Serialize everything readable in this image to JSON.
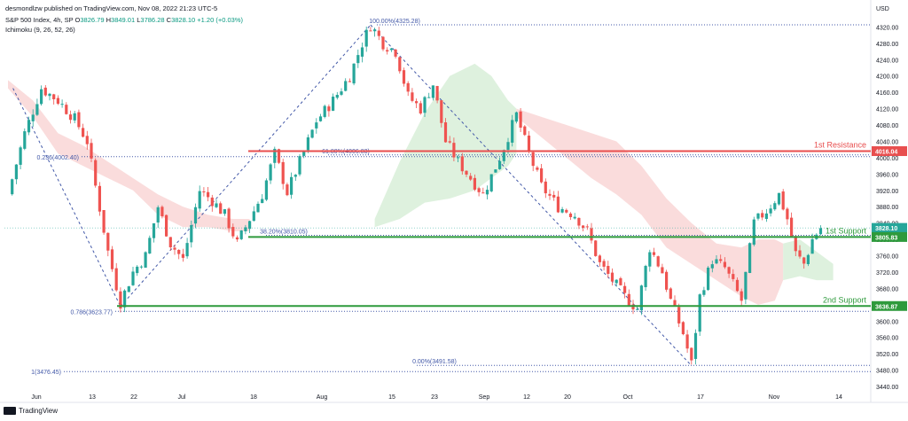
{
  "header": {
    "author_line": "desmondlzw published on TradingView.com, Nov 08, 2022 21:23 UTC-5",
    "symbol": "S&P 500 Index, 4h, SP",
    "ohlc_o_label": "O",
    "ohlc_o": "3826.79",
    "ohlc_h_label": "H",
    "ohlc_h": "3849.01",
    "ohlc_l_label": "L",
    "ohlc_l": "3786.28",
    "ohlc_c_label": "C",
    "ohlc_c": "3828.10",
    "change": "+1.20 (+0.03%)",
    "indicator": "Ichimoku (9, 26, 52, 26)"
  },
  "footer": {
    "brand": "TradingView"
  },
  "colors": {
    "bull": "#26a69a",
    "bear": "#ef5350",
    "resistance": "#e84e4e",
    "support": "#2e9a3c",
    "fib": "#4359a8",
    "cloud_bear": "#f9d6d6",
    "cloud_bull": "#d8eed8"
  },
  "chart_data": {
    "type": "candlestick",
    "currency": "USD",
    "ylim": [
      3440,
      4360
    ],
    "y_ticks": [
      "4320.00",
      "4280.00",
      "4240.00",
      "4200.00",
      "4160.00",
      "4120.00",
      "4080.00",
      "4040.00",
      "4000.00",
      "3960.00",
      "3920.00",
      "3880.00",
      "3840.00",
      "3800.00",
      "3760.00",
      "3720.00",
      "3680.00",
      "3640.00",
      "3600.00",
      "3560.00",
      "3520.00",
      "3480.00",
      "3440.00"
    ],
    "x_ticks": [
      "Jun",
      "13",
      "22",
      "Jul",
      "18",
      "Aug",
      "15",
      "23",
      "Sep",
      "12",
      "20",
      "Oct",
      "17",
      "Nov",
      "14"
    ],
    "levels": [
      {
        "name": "1st Resistance",
        "value": 4016.04,
        "label": "4016.04",
        "color": "#e84e4e"
      },
      {
        "name": "1st Support",
        "value": 3805.83,
        "label": "3805.83",
        "color": "#2e9a3c"
      },
      {
        "name": "2nd Support",
        "value": 3636.87,
        "label": "3636.87",
        "color": "#2e9a3c"
      }
    ],
    "current_price": {
      "value": 3828.1,
      "label": "3828.10"
    },
    "fib_left": [
      {
        "value": 4002.4,
        "label": "0.236(4002.40)"
      },
      {
        "value": 3623.77,
        "label": "0.786(3623.77)"
      },
      {
        "value": 3476.45,
        "label": "1(3476.45)"
      }
    ],
    "fib_right": [
      {
        "value": 4325.28,
        "label": "100.00%(4325.28)"
      },
      {
        "value": 4006.83,
        "label": "61.80%(4006.83)"
      },
      {
        "value": 3810.05,
        "label": "38.20%(3810.05)"
      },
      {
        "value": 3491.58,
        "label": "0.00%(3491.58)"
      }
    ],
    "swings": [
      {
        "t": 0.6,
        "v": 4170
      },
      {
        "t": 13.5,
        "v": 3636
      },
      {
        "t": 43.5,
        "v": 4325
      },
      {
        "t": 82.0,
        "v": 3491
      }
    ],
    "path": [
      [
        0,
        3910
      ],
      [
        2,
        4060
      ],
      [
        4,
        4170
      ],
      [
        6,
        4140
      ],
      [
        8,
        4095
      ],
      [
        9.5,
        4040
      ],
      [
        10.5,
        3930
      ],
      [
        12,
        3770
      ],
      [
        13.5,
        3645
      ],
      [
        15,
        3720
      ],
      [
        16.5,
        3760
      ],
      [
        18,
        3880
      ],
      [
        19.5,
        3790
      ],
      [
        21,
        3750
      ],
      [
        23,
        3920
      ],
      [
        24.5,
        3895
      ],
      [
        26,
        3860
      ],
      [
        27.5,
        3790
      ],
      [
        29,
        3850
      ],
      [
        30.5,
        3910
      ],
      [
        32,
        4010
      ],
      [
        33.5,
        3915
      ],
      [
        35,
        3990
      ],
      [
        37,
        4090
      ],
      [
        39,
        4140
      ],
      [
        41,
        4200
      ],
      [
        42.5,
        4280
      ],
      [
        43.5,
        4325
      ],
      [
        45,
        4280
      ],
      [
        46.5,
        4260
      ],
      [
        48,
        4150
      ],
      [
        49.5,
        4120
      ],
      [
        51,
        4180
      ],
      [
        52.5,
        4040
      ],
      [
        54,
        3990
      ],
      [
        55.5,
        3950
      ],
      [
        57,
        3910
      ],
      [
        59,
        4000
      ],
      [
        61,
        4105
      ],
      [
        62.5,
        4010
      ],
      [
        64,
        3930
      ],
      [
        66,
        3880
      ],
      [
        68,
        3860
      ],
      [
        69.5,
        3820
      ],
      [
        71,
        3740
      ],
      [
        72.5,
        3700
      ],
      [
        74,
        3660
      ],
      [
        75.5,
        3630
      ],
      [
        77,
        3780
      ],
      [
        78.5,
        3720
      ],
      [
        79.5,
        3650
      ],
      [
        81,
        3570
      ],
      [
        82,
        3495
      ],
      [
        83,
        3660
      ],
      [
        84.5,
        3750
      ],
      [
        86,
        3730
      ],
      [
        88,
        3650
      ],
      [
        89.5,
        3840
      ],
      [
        91,
        3870
      ],
      [
        92.5,
        3910
      ],
      [
        93.5,
        3850
      ],
      [
        94.5,
        3765
      ],
      [
        95.5,
        3740
      ],
      [
        96.5,
        3800
      ],
      [
        97.5,
        3828
      ]
    ],
    "ichimoku_cloud_bearish": [
      [
        0,
        4190,
        4170
      ],
      [
        3,
        4140,
        4100
      ],
      [
        6,
        4060,
        4010
      ],
      [
        9,
        4030,
        3980
      ],
      [
        12,
        3990,
        3950
      ],
      [
        15,
        3950,
        3920
      ],
      [
        18,
        3910,
        3860
      ],
      [
        21,
        3880,
        3830
      ],
      [
        24,
        3860,
        3830
      ],
      [
        27,
        3850,
        3820
      ],
      [
        29,
        3850,
        3820
      ]
    ],
    "ichimoku_cloud_bullish": [
      [
        44,
        3850,
        3830
      ],
      [
        47,
        3990,
        3850
      ],
      [
        50,
        4110,
        3890
      ],
      [
        53,
        4200,
        3900
      ],
      [
        56,
        4230,
        3920
      ],
      [
        58,
        4200,
        3950
      ],
      [
        60,
        4140,
        3980
      ],
      [
        61,
        4120,
        4010
      ]
    ],
    "ichimoku_cloud_bearish_2": [
      [
        61,
        4120,
        4100
      ],
      [
        64,
        4100,
        4050
      ],
      [
        67,
        4080,
        4000
      ],
      [
        70,
        4060,
        3950
      ],
      [
        73,
        4040,
        3910
      ],
      [
        76,
        3980,
        3860
      ],
      [
        79,
        3900,
        3780
      ],
      [
        82,
        3840,
        3740
      ],
      [
        85,
        3790,
        3700
      ],
      [
        88,
        3780,
        3660
      ],
      [
        90,
        3800,
        3640
      ],
      [
        92,
        3800,
        3650
      ],
      [
        93,
        3790,
        3700
      ]
    ],
    "ichimoku_cloud_bullish_2": [
      [
        93,
        3790,
        3700
      ],
      [
        95,
        3800,
        3710
      ],
      [
        97,
        3770,
        3700
      ],
      [
        99,
        3740,
        3700
      ]
    ]
  }
}
